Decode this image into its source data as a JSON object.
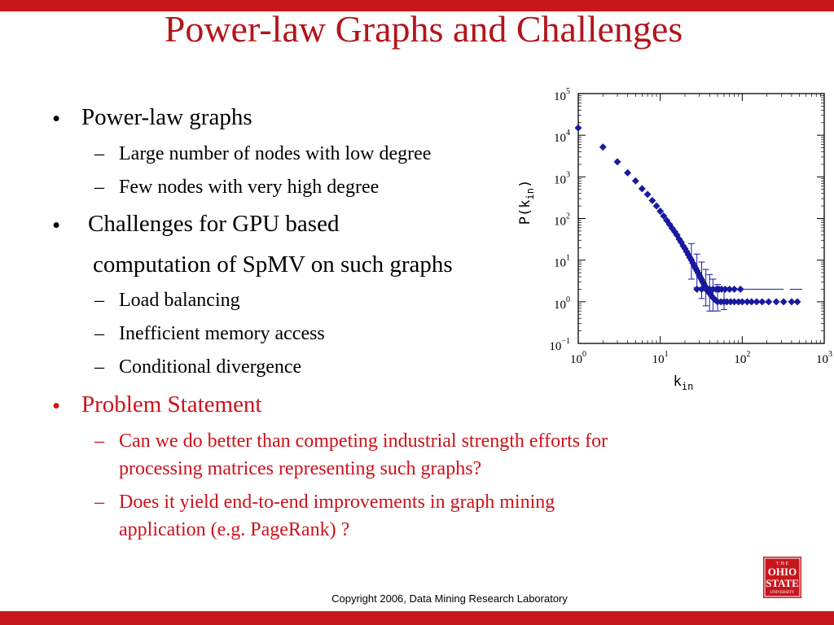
{
  "slide": {
    "title": "Power-law Graphs and Challenges",
    "bullets": [
      {
        "text": "Power-law graphs",
        "level": 1,
        "marker": "•"
      },
      {
        "text": "Large number of nodes with low degree",
        "level": 2,
        "marker": "–"
      },
      {
        "text": "Few nodes with very high degree",
        "level": 2,
        "marker": "–"
      },
      {
        "text": "Challenges for GPU based",
        "level": 1,
        "marker": "•"
      },
      {
        "text": "computation of SpMV on such graphs",
        "level": 1,
        "marker": ""
      },
      {
        "text": "Load balancing",
        "level": 2,
        "marker": "–"
      },
      {
        "text": "Inefficient memory access",
        "level": 2,
        "marker": "–"
      },
      {
        "text": "Conditional divergence",
        "level": 2,
        "marker": "–"
      },
      {
        "text": "Problem Statement",
        "level": 1,
        "marker": "•"
      },
      {
        "text": "Can we do better than competing industrial strength  efforts for",
        "level": 2,
        "marker": "–"
      },
      {
        "text": "processing matrices representing such graphs?",
        "level": 2,
        "marker": ""
      },
      {
        "text": "Does it yield end-to-end improvements in graph mining",
        "level": 2,
        "marker": "–"
      },
      {
        "text": "application (e.g. PageRank) ?",
        "level": 2,
        "marker": ""
      }
    ],
    "footer": "Copyright 2006, Data Mining Research Laboratory",
    "colors": {
      "accent_red": "#c8161d",
      "title_red": "#b3151b",
      "problem_red": "#d0101a",
      "point_blue": "#1a1aa8"
    },
    "logo": {
      "icon": "ohio-state-university-logo",
      "lines": [
        "T·H·E",
        "OHIO",
        "STATE",
        "UNIVERSITY"
      ]
    }
  },
  "chart_data": {
    "type": "scatter",
    "xlabel": "k_in",
    "ylabel": "P(k_in)",
    "xscale": "log",
    "yscale": "log",
    "xlim": [
      1,
      1000
    ],
    "ylim": [
      0.1,
      100000
    ],
    "xticks": [
      {
        "base": "10",
        "exp": "0"
      },
      {
        "base": "10",
        "exp": "1"
      },
      {
        "base": "10",
        "exp": "2"
      },
      {
        "base": "10",
        "exp": "3"
      }
    ],
    "yticks": [
      {
        "base": "10",
        "exp": "−1"
      },
      {
        "base": "10",
        "exp": "0"
      },
      {
        "base": "10",
        "exp": "1"
      },
      {
        "base": "10",
        "exp": "2"
      },
      {
        "base": "10",
        "exp": "3"
      },
      {
        "base": "10",
        "exp": "4"
      },
      {
        "base": "10",
        "exp": "5"
      }
    ],
    "grid": false,
    "points": [
      [
        1,
        15000
      ],
      [
        2,
        5200
      ],
      [
        3,
        2300
      ],
      [
        4,
        1250
      ],
      [
        5,
        800
      ],
      [
        6,
        520
      ],
      [
        7,
        380
      ],
      [
        8,
        270
      ],
      [
        9,
        200
      ],
      [
        10,
        150
      ],
      [
        11,
        115
      ],
      [
        12,
        90
      ],
      [
        13,
        72
      ],
      [
        14,
        58
      ],
      [
        15,
        48
      ],
      [
        16,
        40
      ],
      [
        17,
        32
      ],
      [
        18,
        27
      ],
      [
        19,
        22
      ],
      [
        20,
        19
      ],
      [
        21,
        16
      ],
      [
        22,
        13.5
      ],
      [
        23,
        11.5
      ],
      [
        24,
        10
      ],
      [
        25,
        8.5
      ],
      [
        26,
        7.3
      ],
      [
        27,
        6.4
      ],
      [
        28,
        5.6
      ],
      [
        29,
        4.9
      ],
      [
        30,
        4.3
      ],
      [
        31,
        3.8
      ],
      [
        32,
        3.4
      ],
      [
        33,
        3.0
      ],
      [
        34,
        2.7
      ],
      [
        35,
        2.4
      ],
      [
        36,
        2.2
      ],
      [
        37,
        2.0
      ],
      [
        38,
        1.8
      ],
      [
        40,
        1.6
      ],
      [
        42,
        1.4
      ],
      [
        44,
        1.25
      ],
      [
        47,
        1.1
      ],
      [
        50,
        1.0
      ],
      [
        55,
        1.0
      ],
      [
        60,
        1.0
      ],
      [
        65,
        1.0
      ],
      [
        72,
        1.0
      ],
      [
        80,
        1.0
      ],
      [
        90,
        1.0
      ],
      [
        100,
        1.0
      ],
      [
        115,
        1.0
      ],
      [
        130,
        1.0
      ],
      [
        150,
        1.0
      ],
      [
        175,
        1.0
      ],
      [
        210,
        1.0
      ],
      [
        260,
        1.0
      ],
      [
        320,
        1.0
      ],
      [
        400,
        1.0
      ],
      [
        470,
        1.0
      ],
      [
        28,
        2.0
      ],
      [
        32,
        2.0
      ],
      [
        36,
        2.0
      ],
      [
        40,
        2.0
      ],
      [
        44,
        2.0
      ],
      [
        48,
        2.0
      ],
      [
        52,
        2.0
      ],
      [
        56,
        2.0
      ],
      [
        62,
        2.0
      ],
      [
        70,
        2.0
      ],
      [
        80,
        2.0
      ],
      [
        95,
        2.0
      ]
    ],
    "error_bars": [
      {
        "x": 24,
        "y": 10,
        "lo": 3.5,
        "hi": 25
      },
      {
        "x": 28,
        "y": 5.6,
        "lo": 2.2,
        "hi": 14
      },
      {
        "x": 32,
        "y": 3.4,
        "lo": 1.2,
        "hi": 9
      },
      {
        "x": 36,
        "y": 2.2,
        "lo": 0.8,
        "hi": 6
      },
      {
        "x": 40,
        "y": 1.6,
        "lo": 0.6,
        "hi": 4.5
      },
      {
        "x": 44,
        "y": 1.25,
        "lo": 0.6,
        "hi": 3.5
      },
      {
        "x": 50,
        "y": 1.0,
        "lo": 0.6,
        "hi": 2.6
      },
      {
        "x": 60,
        "y": 1.0,
        "lo": 0.65,
        "hi": 2.2
      }
    ],
    "h_lines": [
      {
        "y": 2.0,
        "x_from": 30,
        "x_to": 320
      },
      {
        "y": 2.0,
        "x_from": 380,
        "x_to": 540
      }
    ]
  }
}
